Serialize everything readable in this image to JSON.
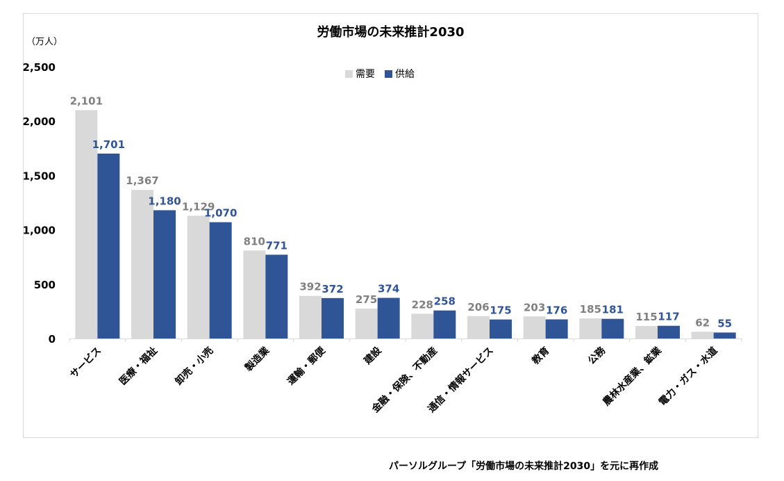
{
  "chart_data": {
    "type": "bar",
    "title": "労働市場の未来推計2030",
    "unit_label": "（万人）",
    "categories": [
      "サービス",
      "医療・福祉",
      "卸売・小売",
      "製造業",
      "運輸・郵便",
      "建設",
      "金融・保険、不動産",
      "通信・情報サービス",
      "教育",
      "公務",
      "農林水産業、鉱業",
      "電力・ガス・水道"
    ],
    "series": [
      {
        "name": "需要",
        "color": "#d9d9d9",
        "label_color": "#808080",
        "values": [
          2101,
          1367,
          1129,
          810,
          392,
          275,
          228,
          206,
          203,
          185,
          115,
          62
        ],
        "labels": [
          "2,101",
          "1,367",
          "1,129",
          "810",
          "392",
          "275",
          "228",
          "206",
          "203",
          "185",
          "115",
          "62"
        ]
      },
      {
        "name": "供給",
        "color": "#2f5597",
        "label_color": "#2f5597",
        "values": [
          1701,
          1180,
          1070,
          771,
          372,
          374,
          258,
          175,
          176,
          181,
          117,
          55
        ],
        "labels": [
          "1,701",
          "1,180",
          "1,070",
          "771",
          "372",
          "374",
          "258",
          "175",
          "176",
          "181",
          "117",
          "55"
        ]
      }
    ],
    "yticks": [
      0,
      500,
      1000,
      1500,
      2000,
      2500
    ],
    "ytick_labels": [
      "0",
      "500",
      "1,000",
      "1,500",
      "2,000",
      "2,500"
    ],
    "ylim": [
      0,
      2500
    ],
    "grid": false,
    "legend_position": "top-center"
  },
  "source_caption": "パーソルグループ「労働市場の未来推計2030」を元に再作成"
}
